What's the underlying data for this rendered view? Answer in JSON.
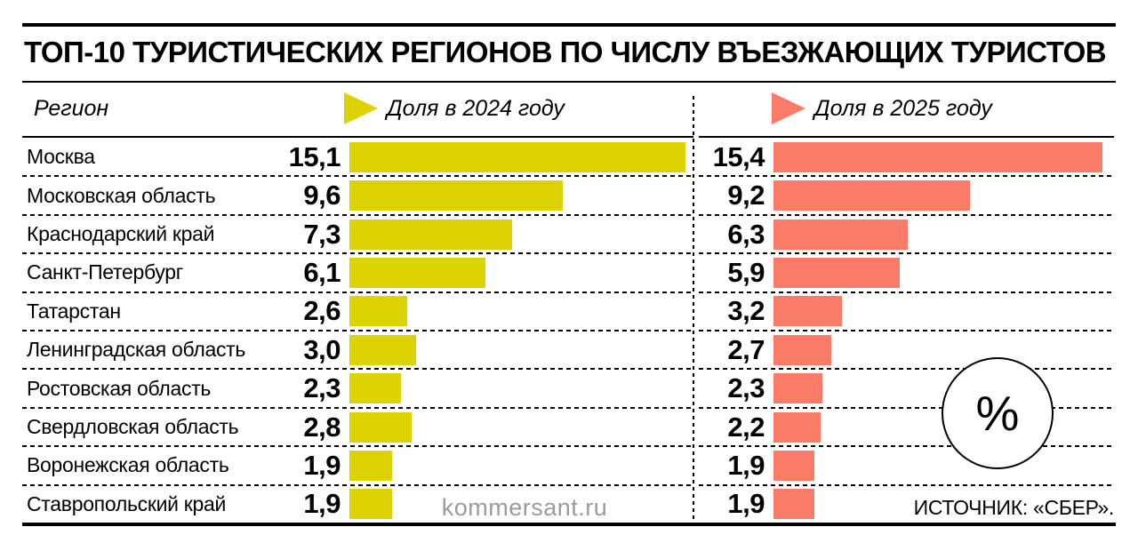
{
  "header": {
    "title": "ТОП-10 ТУРИСТИЧЕСКИХ РЕГИОНОВ ПО ЧИСЛУ ВЪЕЗЖАЮЩИХ ТУРИСТОВ",
    "region_column_label": "Регион",
    "legend_2024": "Доля в 2024 году",
    "legend_2025": "Доля в 2025 году"
  },
  "badge": {
    "symbol": "%"
  },
  "footer": {
    "watermark": "kommersant.ru",
    "source": "ИСТОЧНИК: «СБЕР»."
  },
  "colors": {
    "bar_2024": "#ddd204",
    "bar_2025": "#fa7b68",
    "line": "#000000",
    "watermark_text": "#9b9b9b"
  },
  "chart_data": {
    "type": "bar",
    "orientation": "horizontal",
    "title": "ТОП-10 туристических регионов по числу въезжающих туристов",
    "unit": "%",
    "value_format": "comma-decimal",
    "xlim": [
      0,
      16
    ],
    "grid": "dashed-row-separators",
    "legend_position": "top",
    "categories": [
      "Москва",
      "Московская область",
      "Краснодарский край",
      "Санкт-Петербург",
      "Татарстан",
      "Ленинградская область",
      "Ростовская область",
      "Свердловская область",
      "Воронежская область",
      "Ставропольский край"
    ],
    "series": [
      {
        "name": "Доля в 2024 году",
        "color": "#ddd204",
        "values": [
          15.1,
          9.6,
          7.3,
          6.1,
          2.6,
          3.0,
          2.3,
          2.8,
          1.9,
          1.9
        ],
        "labels": [
          "15,1",
          "9,6",
          "7,3",
          "6,1",
          "2,6",
          "3,0",
          "2,3",
          "2,8",
          "1,9",
          "1,9"
        ]
      },
      {
        "name": "Доля в 2025 году",
        "color": "#fa7b68",
        "values": [
          15.4,
          9.2,
          6.3,
          5.9,
          3.2,
          2.7,
          2.3,
          2.2,
          1.9,
          1.9
        ],
        "labels": [
          "15,4",
          "9,2",
          "6,3",
          "5,9",
          "3,2",
          "2,7",
          "2,3",
          "2,2",
          "1,9",
          "1,9"
        ]
      }
    ]
  }
}
